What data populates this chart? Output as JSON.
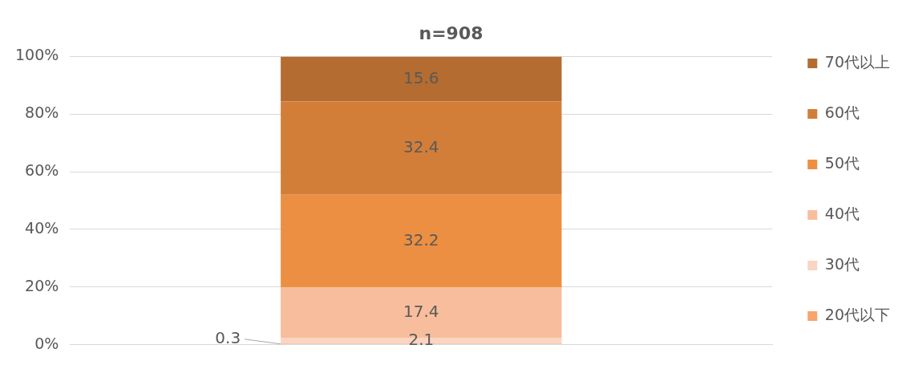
{
  "chart_data": {
    "type": "bar",
    "title": "n=908",
    "categories": [
      null
    ],
    "stacked": true,
    "data_labels": true,
    "legend": "right",
    "grid": "y",
    "ylim": [
      0,
      100
    ],
    "yticks": [
      {
        "value": 0,
        "label": "0%"
      },
      {
        "value": 20,
        "label": "20%"
      },
      {
        "value": 40,
        "label": "40%"
      },
      {
        "value": 60,
        "label": "60%"
      },
      {
        "value": 80,
        "label": "80%"
      },
      {
        "value": 100,
        "label": "100%"
      }
    ],
    "series": [
      {
        "name": "20代以下",
        "color": "#f7a46d",
        "values": [
          0.3
        ]
      },
      {
        "name": "30代",
        "color": "#f9d5c4",
        "values": [
          2.1
        ]
      },
      {
        "name": "40代",
        "color": "#f8bd9c",
        "values": [
          17.4
        ]
      },
      {
        "name": "50代",
        "color": "#ec8f42",
        "values": [
          32.2
        ]
      },
      {
        "name": "60代",
        "color": "#d27e39",
        "values": [
          32.4
        ]
      },
      {
        "name": "70代以上",
        "color": "#b46c31",
        "values": [
          15.6
        ]
      }
    ]
  }
}
